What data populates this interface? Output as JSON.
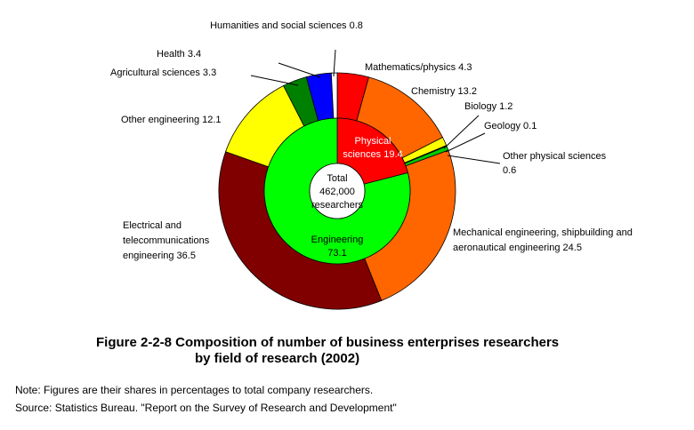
{
  "chart_data": {
    "type": "pie",
    "subtype": "nested-donut",
    "center_label": [
      "Total",
      "462,000",
      "researchers"
    ],
    "inner_ring": [
      {
        "name": "Physical",
        "name2": "sciences 19.4",
        "value": 19.4,
        "color": "#ff0000",
        "text_color": "#ffffff"
      },
      {
        "name": "Engineering",
        "name2": "73.1",
        "value": 73.1,
        "color": "#00ff00",
        "text_color": "#000000"
      }
    ],
    "outer_ring": [
      {
        "label": "Mathematics/physics 4.3",
        "value": 4.3,
        "color": "#ff0000"
      },
      {
        "label": "Chemistry 13.2",
        "value": 13.2,
        "color": "#ff6600"
      },
      {
        "label": "Biology 1.2",
        "value": 1.2,
        "color": "#ffff00"
      },
      {
        "label": "Geology 0.1",
        "value": 0.1,
        "color": "#99cc00"
      },
      {
        "label": "Other physical sciences",
        "label2": "0.6",
        "value": 0.6,
        "color": "#00cc00"
      },
      {
        "label": "Mechanical engineering, shipbuilding and",
        "label2": "aeronautical engineering 24.5",
        "value": 24.5,
        "color": "#ff6600"
      },
      {
        "label": "Electrical and",
        "label2": "telecommunications",
        "label3": "engineering 36.5",
        "value": 36.5,
        "color": "#800000"
      },
      {
        "label": "Other engineering 12.1",
        "value": 12.1,
        "color": "#ffff00"
      },
      {
        "label": "Agricultural sciences 3.3",
        "value": 3.3,
        "color": "#008000"
      },
      {
        "label": "Health 3.4",
        "value": 3.4,
        "color": "#0000ff"
      },
      {
        "label": "Humanities and social sciences 0.8",
        "value": 0.8,
        "color": "#ffffff"
      }
    ]
  },
  "caption": {
    "line1": "Figure 2-2-8  Composition of number of business enterprises researchers",
    "line2": "by field of research (2002)"
  },
  "note": "Note: Figures are their shares in percentages to total company researchers.",
  "source": "Source: Statistics Bureau. \"Report on the Survey of Research and Development\""
}
